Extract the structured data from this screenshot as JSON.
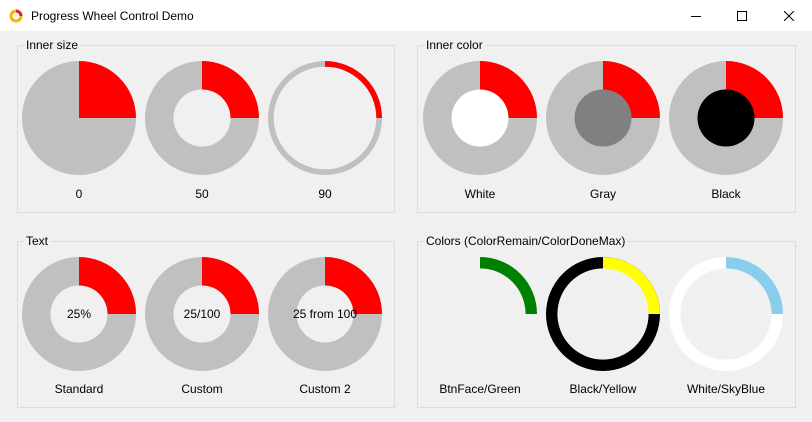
{
  "window": {
    "title": "Progress Wheel Control Demo",
    "icon": "ring-icon",
    "controls": [
      "minimize",
      "maximize",
      "close"
    ]
  },
  "groups": [
    {
      "label": "Inner size",
      "wheels": [
        {
          "caption": "0",
          "text": "",
          "progress": 0.25,
          "inner_size_percent": 0,
          "color_remain": "#c0c0c0",
          "color_done": "#ff0000",
          "inner_color": "#f0f0f0"
        },
        {
          "caption": "50",
          "text": "",
          "progress": 0.25,
          "inner_size_percent": 50,
          "color_remain": "#c0c0c0",
          "color_done": "#ff0000",
          "inner_color": "#f0f0f0"
        },
        {
          "caption": "90",
          "text": "",
          "progress": 0.25,
          "inner_size_percent": 90,
          "color_remain": "#c0c0c0",
          "color_done": "#ff0000",
          "inner_color": "#f0f0f0"
        }
      ]
    },
    {
      "label": "Inner color",
      "wheels": [
        {
          "caption": "White",
          "text": "",
          "progress": 0.25,
          "inner_size_percent": 50,
          "color_remain": "#c0c0c0",
          "color_done": "#ff0000",
          "inner_color": "#ffffff"
        },
        {
          "caption": "Gray",
          "text": "",
          "progress": 0.25,
          "inner_size_percent": 50,
          "color_remain": "#c0c0c0",
          "color_done": "#ff0000",
          "inner_color": "#808080"
        },
        {
          "caption": "Black",
          "text": "",
          "progress": 0.25,
          "inner_size_percent": 50,
          "color_remain": "#c0c0c0",
          "color_done": "#ff0000",
          "inner_color": "#000000"
        }
      ]
    },
    {
      "label": "Text",
      "wheels": [
        {
          "caption": "Standard",
          "text": "25%",
          "progress": 0.25,
          "inner_size_percent": 50,
          "color_remain": "#c0c0c0",
          "color_done": "#ff0000",
          "inner_color": "#f0f0f0"
        },
        {
          "caption": "Custom",
          "text": "25/100",
          "progress": 0.25,
          "inner_size_percent": 50,
          "color_remain": "#c0c0c0",
          "color_done": "#ff0000",
          "inner_color": "#f0f0f0"
        },
        {
          "caption": "Custom 2",
          "text": "25 from 100",
          "progress": 0.25,
          "inner_size_percent": 50,
          "color_remain": "#c0c0c0",
          "color_done": "#ff0000",
          "inner_color": "#f0f0f0"
        }
      ]
    },
    {
      "label": "Colors (ColorRemain/ColorDoneMax)",
      "wheels": [
        {
          "caption": "BtnFace/Green",
          "text": "",
          "progress": 0.25,
          "inner_size_percent": 80,
          "color_remain": "#f0f0f0",
          "color_done": "#008000",
          "inner_color": "#f0f0f0"
        },
        {
          "caption": "Black/Yellow",
          "text": "",
          "progress": 0.25,
          "inner_size_percent": 80,
          "color_remain": "#000000",
          "color_done": "#ffff00",
          "inner_color": "#f0f0f0"
        },
        {
          "caption": "White/SkyBlue",
          "text": "",
          "progress": 0.25,
          "inner_size_percent": 80,
          "color_remain": "#ffffff",
          "color_done": "#87ceeb",
          "inner_color": "#f0f0f0"
        }
      ]
    }
  ]
}
